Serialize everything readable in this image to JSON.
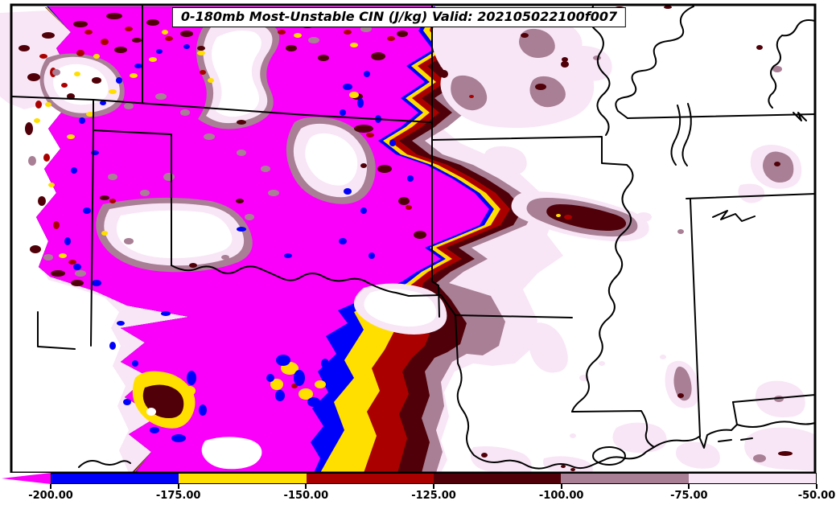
{
  "title": "0-180mb Most-Unstable CIN (J/kg) Valid: 202105022100f007",
  "field": "Most-Unstable CIN",
  "units": "J/kg",
  "valid_time": "202105022100f007",
  "palette": {
    "magenta": "#fa00fa",
    "blue": "#0000fa",
    "yellow": "#ffdf00",
    "red": "#ab0000",
    "maroon": "#500008",
    "mauve": "#a87f95",
    "lightpink": "#f8e6f6",
    "white": "#ffffff",
    "line": "#000000"
  },
  "colorbar": {
    "arrow_color": "#fa00fa",
    "segments": [
      {
        "color": "#0000fa",
        "from": "-200.00",
        "to": "-175.00"
      },
      {
        "color": "#ffdf00",
        "from": "-175.00",
        "to": "-150.00"
      },
      {
        "color": "#ab0000",
        "from": "-150.00",
        "to": "-125.00"
      },
      {
        "color": "#500008",
        "from": "-125.00",
        "to": "-100.00"
      },
      {
        "color": "#a87f95",
        "from": "-100.00",
        "to": "-75.00"
      },
      {
        "color": "#f8e6f6",
        "from": "-75.00",
        "to": "-50.00"
      }
    ],
    "tick_labels": [
      "-200.00",
      "-175.00",
      "-150.00",
      "-125.00",
      "-100.00",
      "-75.00",
      "-50.00"
    ]
  },
  "scale_note": "CIN shaded from below -200 J/kg (magenta, off-scale arrow) to -50 J/kg (pale pink); white = CIN weaker than -50 J/kg"
}
